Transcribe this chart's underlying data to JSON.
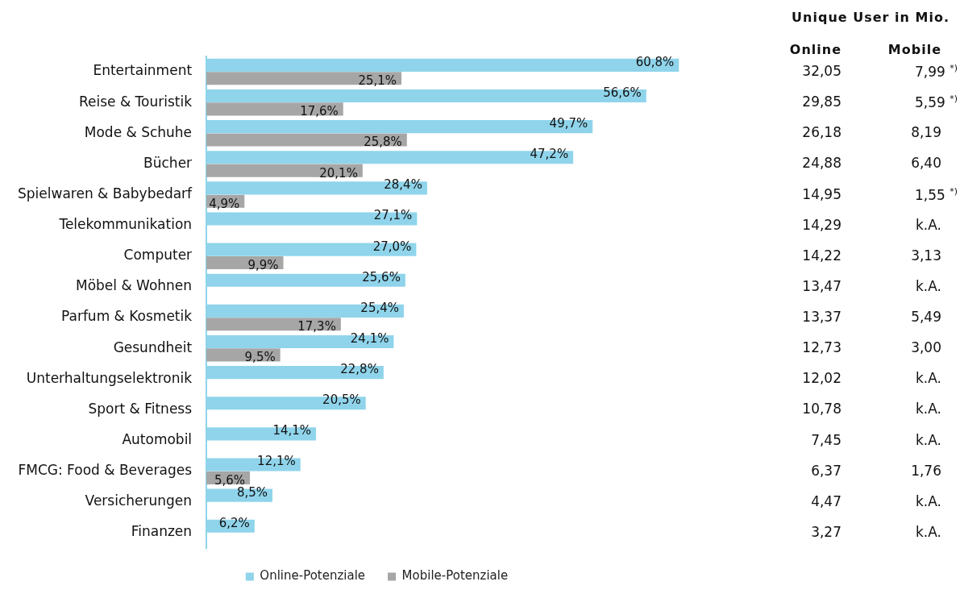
{
  "chart_data": {
    "type": "bar",
    "orientation": "horizontal",
    "categories": [
      "Entertainment",
      "Reise & Touristik",
      "Mode & Schuhe",
      "Bücher",
      "Spielwaren & Babybedarf",
      "Telekommunikation",
      "Computer",
      "Möbel & Wohnen",
      "Parfum & Kosmetik",
      "Gesundheit",
      "Unterhaltungselektronik",
      "Sport & Fitness",
      "Automobil",
      "FMCG: Food & Beverages",
      "Versicherungen",
      "Finanzen"
    ],
    "series": [
      {
        "name": "Online-Potenziale",
        "color": "#8fd4eb",
        "values": [
          60.8,
          56.6,
          49.7,
          47.2,
          28.4,
          27.1,
          27.0,
          25.6,
          25.4,
          24.1,
          22.8,
          20.5,
          14.1,
          12.1,
          8.5,
          6.2
        ],
        "value_labels": [
          "60,8%",
          "56,6%",
          "49,7%",
          "47,2%",
          "28,4%",
          "27,1%",
          "27,0%",
          "25,6%",
          "25,4%",
          "24,1%",
          "22,8%",
          "20,5%",
          "14,1%",
          "12,1%",
          "8,5%",
          "6,2%"
        ]
      },
      {
        "name": "Mobile-Potenziale",
        "color": "#a6a6a6",
        "values": [
          25.1,
          17.6,
          25.8,
          20.1,
          4.9,
          null,
          9.9,
          null,
          17.3,
          9.5,
          null,
          null,
          null,
          5.6,
          null,
          null
        ],
        "value_labels": [
          "25,1%",
          "17,6%",
          "25,8%",
          "20,1%",
          "4,9%",
          null,
          "9,9%",
          null,
          "17,3%",
          "9,5%",
          null,
          null,
          null,
          "5,6%",
          null,
          null
        ]
      }
    ],
    "legend": "bottom",
    "tick_labels": "y",
    "annotations": [
      "Unique User in Mio.",
      "Online",
      "Mobile",
      "32,05",
      "7,99 $^{*)}$",
      "29,85",
      "5,59 $^{*)}$",
      "26,18",
      "8,19",
      "24,88",
      "6,40",
      "14,95",
      "1,55 $^{*)}$",
      "14,29",
      "k.A.",
      "14,22",
      "3,13",
      "13,47",
      "k.A.",
      "13,37",
      "5,49",
      "12,73",
      "3,00",
      "12,02",
      "k.A.",
      "10,78",
      "k.A.",
      "7,45",
      "k.A.",
      "6,37",
      "1,76",
      "4,47",
      "k.A.",
      "3,27",
      "k.A."
    ]
  }
}
